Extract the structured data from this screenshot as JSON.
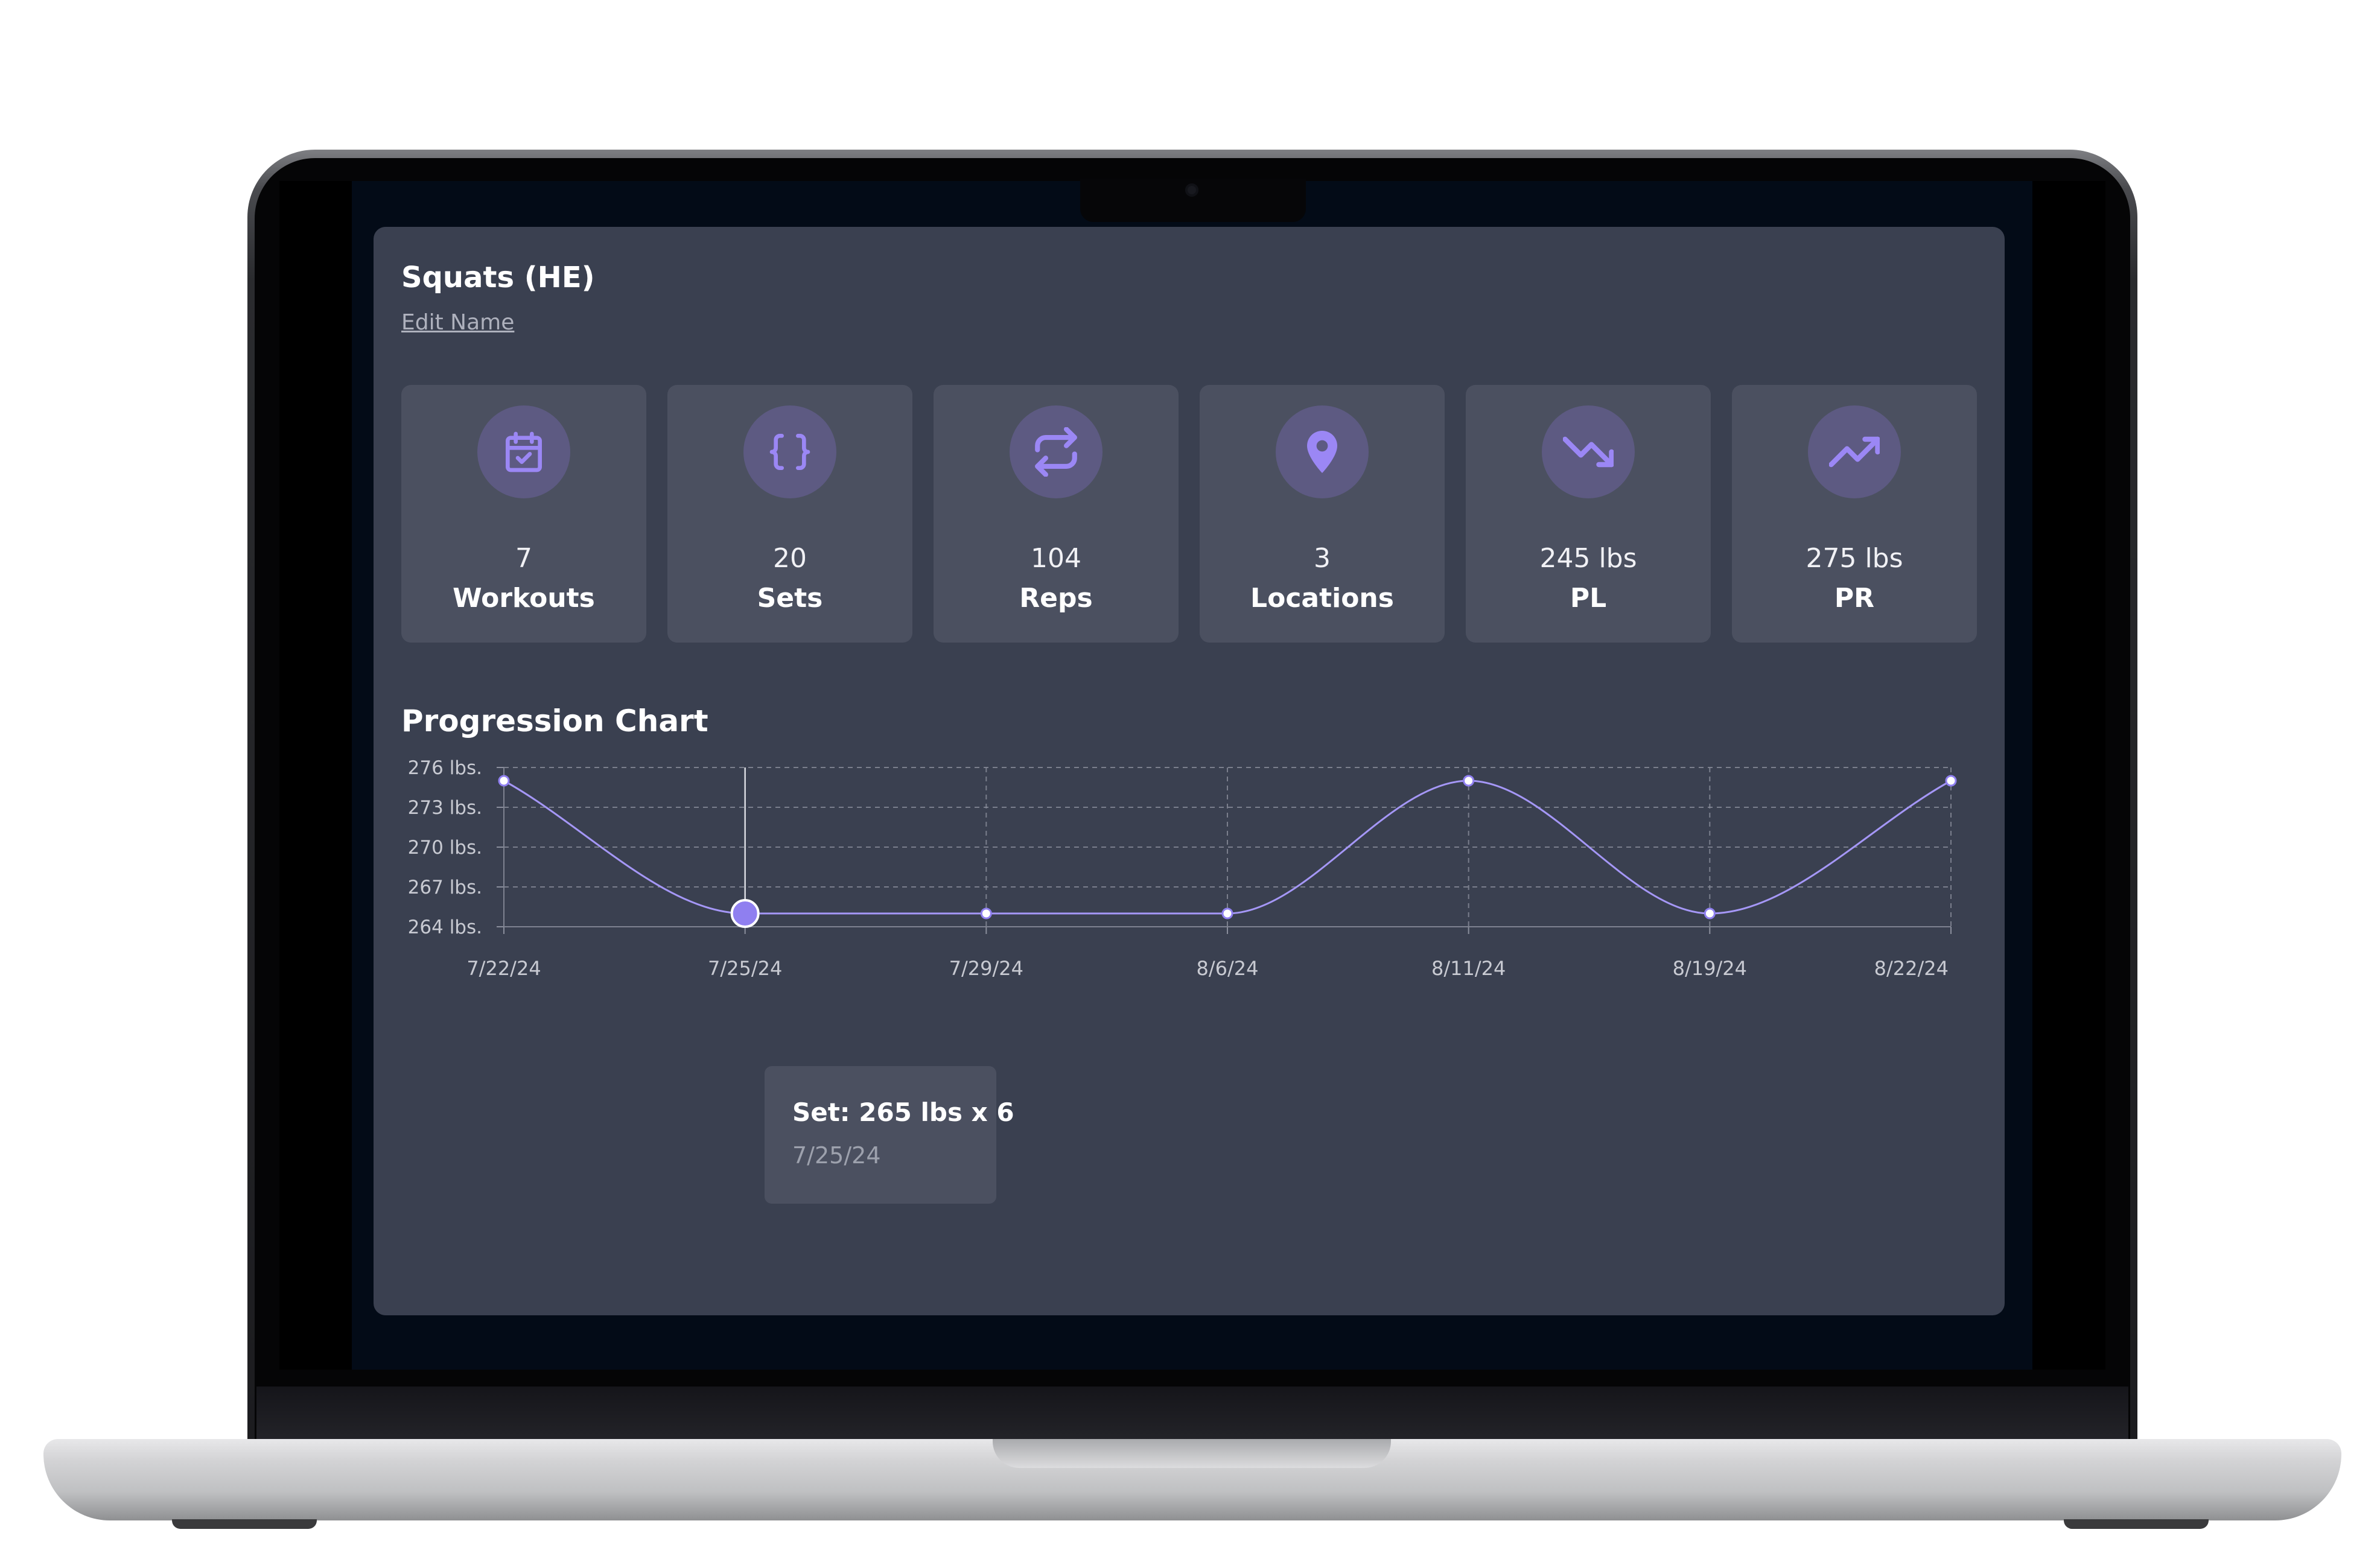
{
  "exercise": {
    "title": "Squats (HE)",
    "edit_label": "Edit Name"
  },
  "stats": [
    {
      "icon": "calendar-check-icon",
      "value": "7",
      "label": "Workouts"
    },
    {
      "icon": "braces-icon",
      "value": "20",
      "label": "Sets"
    },
    {
      "icon": "repeat-icon",
      "value": "104",
      "label": "Reps"
    },
    {
      "icon": "map-pin-icon",
      "value": "3",
      "label": "Locations"
    },
    {
      "icon": "trending-down-icon",
      "value": "245 lbs",
      "label": "PL"
    },
    {
      "icon": "trending-up-icon",
      "value": "275 lbs",
      "label": "PR"
    }
  ],
  "colors": {
    "accent": "#8f7ff0",
    "card_bg": "#3a4050",
    "tile_bg": "#4b5060",
    "icon_bg": "#5d5a82"
  },
  "chart_title": "Progression Chart",
  "chart_data": {
    "type": "line",
    "title": "Progression Chart",
    "xlabel": "",
    "ylabel": "",
    "x": [
      "7/22/24",
      "7/25/24",
      "7/29/24",
      "8/6/24",
      "8/11/24",
      "8/19/24",
      "8/22/24"
    ],
    "series": [
      {
        "values": [
          275,
          265,
          265,
          265,
          275,
          265,
          275
        ]
      }
    ],
    "y_ticks": [
      "276 lbs.",
      "273 lbs.",
      "270 lbs.",
      "267 lbs.",
      "264 lbs."
    ],
    "y_tick_values": [
      276,
      273,
      270,
      267,
      264
    ],
    "ylim": [
      264,
      276
    ],
    "grid": true,
    "curve": "smooth",
    "active_index": 1
  },
  "tooltip": {
    "title": "Set: 265 lbs x 6",
    "date": "7/25/24"
  }
}
